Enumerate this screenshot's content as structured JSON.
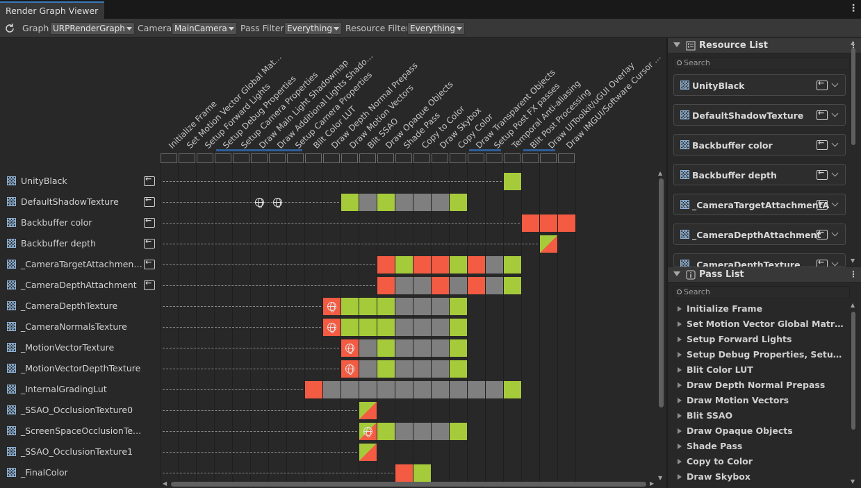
{
  "window": {
    "tab_title": "Render Graph Viewer"
  },
  "toolbar": {
    "graph_label": "Graph",
    "graph_value": "URPRenderGraph",
    "camera_label": "Camera",
    "camera_value": "MainCamera",
    "pass_filter_label": "Pass Filter",
    "pass_filter_value": "Everything",
    "resource_filter_label": "Resource Filter",
    "resource_filter_value": "Everything"
  },
  "passes": [
    "Initialize Frame",
    "Set Motion Vector Global Matri...",
    "Setup Forward Lights",
    "Setup Debug Properties",
    "Setup Camera Properties",
    "Draw Main Light Shadowmap",
    "Draw Additional Lights Shadow...",
    "Setup Camera Properties",
    "Blit Color LUT",
    "Draw Depth Normal Prepass",
    "Draw Motion Vectors",
    "Blit SSAO",
    "Draw Opaque Objects",
    "Shade Pass",
    "Copy to Color",
    "Draw Skybox",
    "Copy Color",
    "Draw Transparent Objects",
    "Setup Post FX passes",
    "Temporal Anti-aliasing",
    "Blit Post Processing",
    "Draw UIToolkit/uGUI Overlay",
    "Draw IMGUI/Software Cursor O..."
  ],
  "resources": [
    {
      "name": "UnityBlack",
      "imported": true
    },
    {
      "name": "DefaultShadowTexture",
      "imported": true
    },
    {
      "name": "Backbuffer color",
      "imported": true
    },
    {
      "name": "Backbuffer depth",
      "imported": true
    },
    {
      "name": "_CameraTargetAttachmentA",
      "imported": true
    },
    {
      "name": "_CameraDepthAttachment",
      "imported": true
    },
    {
      "name": "_CameraDepthTexture",
      "imported": false
    },
    {
      "name": "_CameraNormalsTexture",
      "imported": false
    },
    {
      "name": "_MotionVectorTexture",
      "imported": false
    },
    {
      "name": "_MotionVectorDepthTexture",
      "imported": false
    },
    {
      "name": "_InternalGradingLut",
      "imported": false
    },
    {
      "name": "_SSAO_OcclusionTexture0",
      "imported": false
    },
    {
      "name": "_ScreenSpaceOcclusionTextu...",
      "imported": false
    },
    {
      "name": "_SSAO_OcclusionTexture1",
      "imported": false
    },
    {
      "name": "_FinalColor",
      "imported": false
    }
  ],
  "resource_list": {
    "title": "Resource List",
    "search_placeholder": "Search",
    "items": [
      "UnityBlack",
      "DefaultShadowTexture",
      "Backbuffer color",
      "Backbuffer depth",
      "_CameraTargetAttachmentA",
      "_CameraDepthAttachment",
      "_CameraDepthTexture"
    ]
  },
  "pass_list": {
    "title": "Pass List",
    "search_placeholder": "Search",
    "items": [
      "Initialize Frame",
      "Set Motion Vector Global Matrices",
      "Setup Forward Lights",
      "Setup Debug Properties, Setup Came...",
      "Blit Color LUT",
      "Draw Depth Normal Prepass",
      "Draw Motion Vectors",
      "Blit SSAO",
      "Draw Opaque Objects",
      "Shade Pass",
      "Copy to Color",
      "Draw Skybox"
    ]
  },
  "colors": {
    "write": "#f35b43",
    "read": "#a6cb3a",
    "unused": "#7f7f7f",
    "accent": "#3a79bb"
  }
}
